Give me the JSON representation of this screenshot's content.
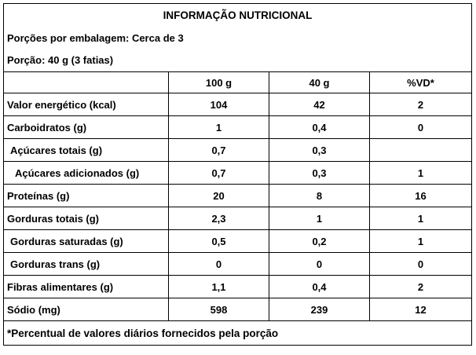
{
  "title": "INFORMAÇÃO NUTRICIONAL",
  "servings_per_package": "Porções por embalagem: Cerca de 3",
  "serving_size": "Porção: 40 g (3 fatias)",
  "columns": [
    "",
    "100 g",
    "40 g",
    "%VD*"
  ],
  "rows": [
    {
      "label": "Valor energético (kcal)",
      "v100": "104",
      "v40": "42",
      "vd": "2"
    },
    {
      "label": "Carboidratos (g)",
      "v100": "1",
      "v40": "0,4",
      "vd": "0"
    },
    {
      "label": " Açúcares totais (g)",
      "v100": "0,7",
      "v40": "0,3",
      "vd": ""
    },
    {
      "label": "  Açúcares adicionados (g)",
      "v100": "0,7",
      "v40": "0,3",
      "vd": "1"
    },
    {
      "label": "Proteínas (g)",
      "v100": "20",
      "v40": "8",
      "vd": "16"
    },
    {
      "label": "Gorduras totais (g)",
      "v100": "2,3",
      "v40": "1",
      "vd": "1"
    },
    {
      "label": " Gorduras saturadas (g)",
      "v100": "0,5",
      "v40": "0,2",
      "vd": "1"
    },
    {
      "label": " Gorduras trans (g)",
      "v100": "0",
      "v40": "0",
      "vd": "0"
    },
    {
      "label": "Fibras alimentares (g)",
      "v100": "1,1",
      "v40": "0,4",
      "vd": "2"
    },
    {
      "label": "Sódio (mg)",
      "v100": "598",
      "v40": "239",
      "vd": "12"
    }
  ],
  "footnote": "*Percentual de valores diários fornecidos pela porção"
}
